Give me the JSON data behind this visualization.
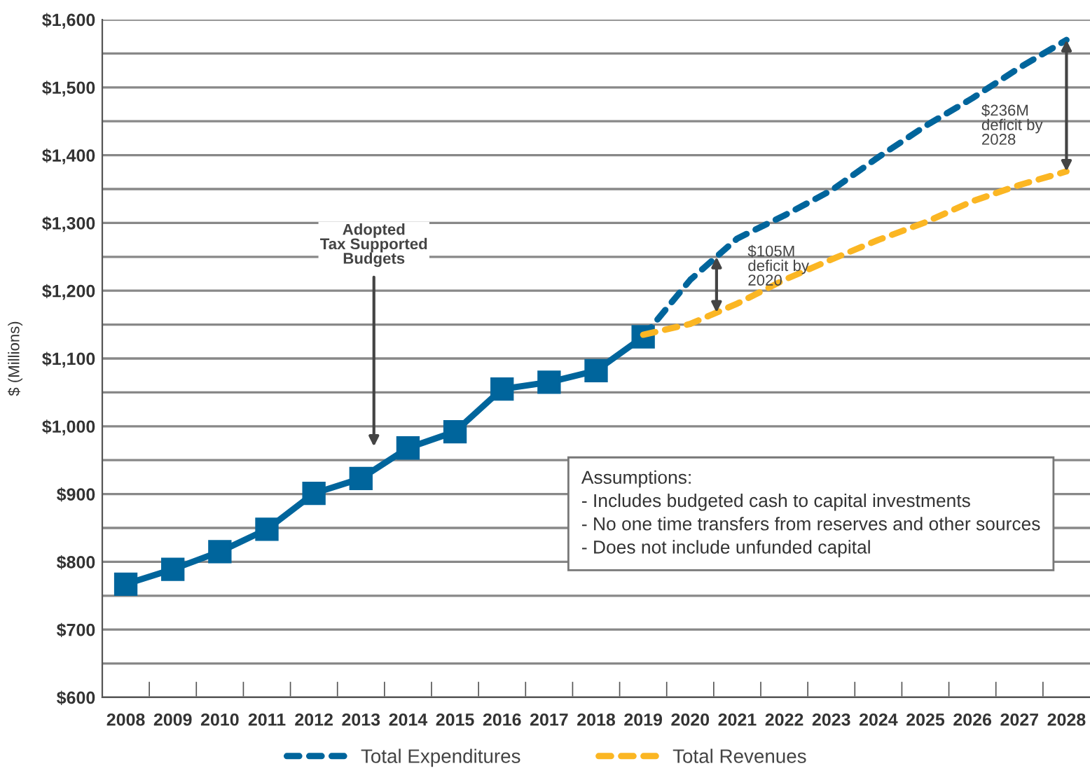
{
  "chart_data": {
    "type": "line",
    "ylabel": "$ (Millions)",
    "x": [
      2008,
      2009,
      2010,
      2011,
      2012,
      2013,
      2014,
      2015,
      2016,
      2017,
      2018,
      2019
    ],
    "series": [
      {
        "color": "#00659c",
        "line_style": "solid",
        "marker": "square",
        "values": [
          767,
          789,
          815,
          848,
          901,
          923,
          968,
          992,
          1055,
          1065,
          1082,
          1132
        ]
      },
      {
        "name": "Total Expenditures",
        "color": "#00659c",
        "line_style": "dashed",
        "marker": "none",
        "x": [
          2019,
          2020,
          2021,
          2022,
          2023,
          2024,
          2025,
          2026,
          2027,
          2028
        ],
        "values": [
          1132,
          1216,
          1277,
          1311,
          1348,
          1397,
          1443,
          1484,
          1529,
          1570
        ]
      },
      {
        "name": "Total Revenues",
        "color": "#fbb623",
        "line_style": "dashed",
        "marker": "none",
        "x": [
          2019,
          2020,
          2021,
          2022,
          2023,
          2024,
          2025,
          2026,
          2027,
          2028
        ],
        "values": [
          1135,
          1151,
          1181,
          1216,
          1246,
          1275,
          1301,
          1332,
          1356,
          1376
        ]
      }
    ],
    "xlim": [
      2007.5,
      2028.5
    ],
    "xticks": [
      2008,
      2009,
      2010,
      2011,
      2012,
      2013,
      2014,
      2015,
      2016,
      2017,
      2018,
      2019,
      2020,
      2021,
      2022,
      2023,
      2024,
      2025,
      2026,
      2027,
      2028
    ],
    "ylim": [
      600,
      1600
    ],
    "yticks": [
      {
        "value": 600,
        "label": "$600"
      },
      {
        "value": 650,
        "label": null
      },
      {
        "value": 700,
        "label": "$700"
      },
      {
        "value": 750,
        "label": null
      },
      {
        "value": 800,
        "label": "$800"
      },
      {
        "value": 850,
        "label": null
      },
      {
        "value": 900,
        "label": "$900"
      },
      {
        "value": 950,
        "label": null
      },
      {
        "value": 1000,
        "label": "$1,000"
      },
      {
        "value": 1050,
        "label": null
      },
      {
        "value": 1100,
        "label": "$1,100"
      },
      {
        "value": 1150,
        "label": null
      },
      {
        "value": 1200,
        "label": "$1,200"
      },
      {
        "value": 1250,
        "label": null
      },
      {
        "value": 1300,
        "label": "$1,300"
      },
      {
        "value": 1350,
        "label": null
      },
      {
        "value": 1400,
        "label": "$1,400"
      },
      {
        "value": 1450,
        "label": null
      },
      {
        "value": 1500,
        "label": "$1,500"
      },
      {
        "value": 1550,
        "label": null
      },
      {
        "value": 1600,
        "label": "$1,600"
      }
    ],
    "grid": "y",
    "legend": "bottom",
    "annotations": [
      "Adopted\nTax Supported\nBudgets",
      {
        "text": "$105M\ndeficit by\n2020",
        "x": 2020.56,
        "y": 1250
      },
      "$236M\ndeficit by\n2028",
      "Assumptions:\n- Includes budgeted cash to capital investments\n- No one time transfers from reserves and other sources\n- Does not include unfunded capital"
    ]
  }
}
